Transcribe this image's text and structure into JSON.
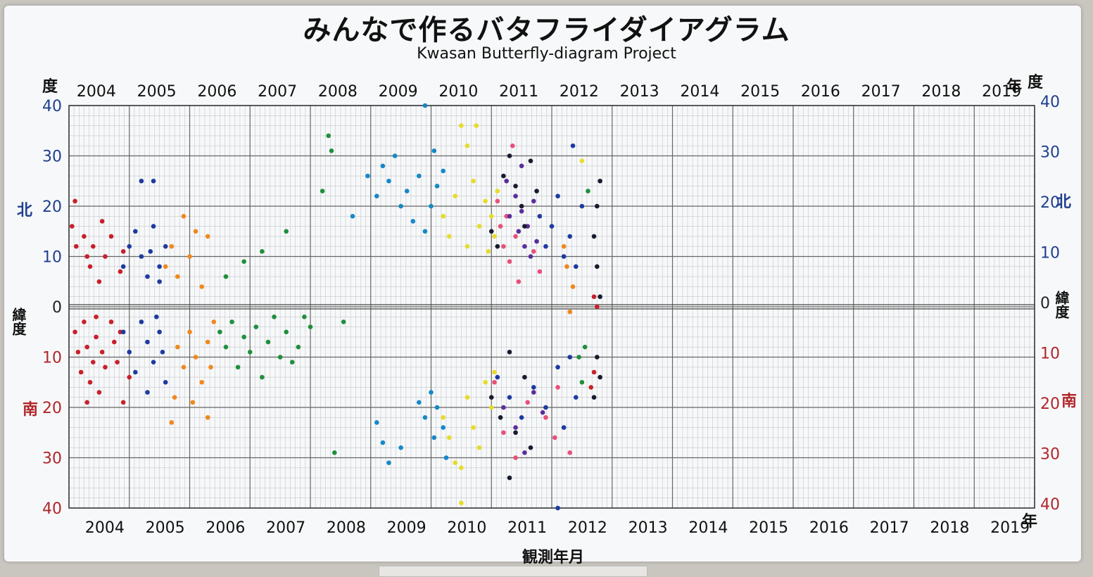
{
  "title": "みんなで作るバタフライダイアグラム",
  "subtitle": "Kwasan Butterfly-diagram Project",
  "labels": {
    "degree_left": "度",
    "degree_right": "度",
    "year_suffix_top": "年",
    "year_suffix_bottom": "年",
    "north_left": "北",
    "north_right": "北",
    "south_left": "南",
    "south_right": "南",
    "latitude_left": "緯度",
    "latitude_right": "緯度",
    "xlabel": "観測年月"
  },
  "colors": {
    "north_axis": "#1f3f8f",
    "south_axis": "#b0262a",
    "grid_major": "#666666",
    "grid_minor": "#c4c7cc"
  },
  "chart_data": {
    "type": "scatter",
    "title": "みんなで作るバタフライダイアグラム",
    "subtitle": "Kwasan Butterfly-diagram Project",
    "xlabel": "観測年月",
    "ylabel": "緯度",
    "xlim": [
      2004.0,
      2020.0
    ],
    "ylim": [
      -40,
      40
    ],
    "x_ticks": [
      2004,
      2005,
      2006,
      2007,
      2008,
      2009,
      2010,
      2011,
      2012,
      2013,
      2014,
      2015,
      2016,
      2017,
      2018,
      2019
    ],
    "y_ticks_left": [
      "40",
      "30",
      "20",
      "10",
      "0",
      "10",
      "20",
      "30",
      "40"
    ],
    "y_ticks_right": [
      "40",
      "30",
      "20",
      "10",
      "0",
      "10",
      "20",
      "30",
      "40"
    ],
    "grid": true,
    "series": [
      {
        "color": "#c8202a",
        "points": [
          [
            2004.05,
            16
          ],
          [
            2004.1,
            21
          ],
          [
            2004.12,
            12
          ],
          [
            2004.25,
            14
          ],
          [
            2004.3,
            10
          ],
          [
            2004.35,
            8
          ],
          [
            2004.4,
            12
          ],
          [
            2004.5,
            5
          ],
          [
            2004.55,
            17
          ],
          [
            2004.6,
            10
          ],
          [
            2004.7,
            14
          ],
          [
            2004.85,
            7
          ],
          [
            2004.9,
            11
          ],
          [
            2004.1,
            -5
          ],
          [
            2004.15,
            -9
          ],
          [
            2004.2,
            -13
          ],
          [
            2004.25,
            -3
          ],
          [
            2004.3,
            -8
          ],
          [
            2004.35,
            -15
          ],
          [
            2004.4,
            -11
          ],
          [
            2004.45,
            -6
          ],
          [
            2004.5,
            -17
          ],
          [
            2004.55,
            -9
          ],
          [
            2004.6,
            -12
          ],
          [
            2004.7,
            -3
          ],
          [
            2004.75,
            -7
          ],
          [
            2004.8,
            -11
          ],
          [
            2004.9,
            -19
          ],
          [
            2004.85,
            -5
          ],
          [
            2005.0,
            -14
          ],
          [
            2004.3,
            -19
          ],
          [
            2004.45,
            -2
          ],
          [
            2012.65,
            -16
          ],
          [
            2012.7,
            -13
          ],
          [
            2012.75,
            0
          ],
          [
            2012.7,
            2
          ]
        ]
      },
      {
        "color": "#1e3aa0",
        "points": [
          [
            2004.9,
            8
          ],
          [
            2005.0,
            12
          ],
          [
            2005.1,
            15
          ],
          [
            2005.2,
            10
          ],
          [
            2005.3,
            6
          ],
          [
            2005.35,
            11
          ],
          [
            2005.4,
            16
          ],
          [
            2005.5,
            8
          ],
          [
            2005.6,
            12
          ],
          [
            2005.2,
            25
          ],
          [
            2005.4,
            25
          ],
          [
            2005.5,
            5
          ],
          [
            2004.9,
            -5
          ],
          [
            2005.0,
            -9
          ],
          [
            2005.1,
            -13
          ],
          [
            2005.2,
            -3
          ],
          [
            2005.3,
            -7
          ],
          [
            2005.4,
            -11
          ],
          [
            2005.5,
            -5
          ],
          [
            2005.55,
            -9
          ],
          [
            2005.6,
            -15
          ],
          [
            2005.3,
            -17
          ],
          [
            2005.45,
            -2
          ],
          [
            2011.1,
            -14
          ],
          [
            2011.3,
            -18
          ],
          [
            2011.5,
            -22
          ],
          [
            2011.7,
            -16
          ],
          [
            2011.9,
            -20
          ],
          [
            2012.1,
            -12
          ],
          [
            2012.2,
            -24
          ],
          [
            2012.3,
            -10
          ],
          [
            2012.4,
            -18
          ],
          [
            2011.8,
            18
          ],
          [
            2011.9,
            12
          ],
          [
            2012.0,
            16
          ],
          [
            2012.1,
            22
          ],
          [
            2012.2,
            10
          ],
          [
            2012.3,
            14
          ],
          [
            2012.35,
            32
          ],
          [
            2012.4,
            8
          ],
          [
            2012.5,
            20
          ],
          [
            2012.1,
            -40
          ]
        ]
      },
      {
        "color": "#f0881e",
        "points": [
          [
            2005.6,
            8
          ],
          [
            2005.7,
            12
          ],
          [
            2005.8,
            6
          ],
          [
            2005.9,
            18
          ],
          [
            2006.0,
            10
          ],
          [
            2006.1,
            15
          ],
          [
            2006.2,
            4
          ],
          [
            2006.3,
            14
          ],
          [
            2005.8,
            -8
          ],
          [
            2005.9,
            -12
          ],
          [
            2006.0,
            -5
          ],
          [
            2006.1,
            -10
          ],
          [
            2006.2,
            -15
          ],
          [
            2006.3,
            -7
          ],
          [
            2006.35,
            -12
          ],
          [
            2006.4,
            -3
          ],
          [
            2005.7,
            -23
          ],
          [
            2006.3,
            -22
          ],
          [
            2005.75,
            -18
          ],
          [
            2006.05,
            -19
          ],
          [
            2012.25,
            8
          ],
          [
            2012.35,
            4
          ],
          [
            2012.3,
            -1
          ],
          [
            2012.2,
            12
          ]
        ]
      },
      {
        "color": "#1f8f3c",
        "points": [
          [
            2006.5,
            -5
          ],
          [
            2006.6,
            -8
          ],
          [
            2006.7,
            -3
          ],
          [
            2006.8,
            -12
          ],
          [
            2006.9,
            -6
          ],
          [
            2007.0,
            -9
          ],
          [
            2007.1,
            -4
          ],
          [
            2007.2,
            -14
          ],
          [
            2007.3,
            -7
          ],
          [
            2007.4,
            -2
          ],
          [
            2007.5,
            -10
          ],
          [
            2007.6,
            -5
          ],
          [
            2007.7,
            -11
          ],
          [
            2007.8,
            -8
          ],
          [
            2008.0,
            -4
          ],
          [
            2007.9,
            -2
          ],
          [
            2006.9,
            9
          ],
          [
            2007.2,
            11
          ],
          [
            2007.6,
            15
          ],
          [
            2006.6,
            6
          ],
          [
            2008.3,
            34
          ],
          [
            2008.35,
            31
          ],
          [
            2008.2,
            23
          ],
          [
            2008.4,
            -29
          ],
          [
            2008.55,
            -3
          ],
          [
            2012.45,
            -10
          ],
          [
            2012.5,
            -15
          ],
          [
            2012.55,
            -8
          ],
          [
            2012.6,
            23
          ]
        ]
      },
      {
        "color": "#1688c8",
        "points": [
          [
            2008.7,
            18
          ],
          [
            2008.95,
            26
          ],
          [
            2009.1,
            22
          ],
          [
            2009.2,
            28
          ],
          [
            2009.3,
            25
          ],
          [
            2009.4,
            30
          ],
          [
            2009.5,
            20
          ],
          [
            2009.6,
            23
          ],
          [
            2009.7,
            17
          ],
          [
            2009.8,
            26
          ],
          [
            2009.9,
            15
          ],
          [
            2010.0,
            20
          ],
          [
            2010.05,
            31
          ],
          [
            2010.1,
            24
          ],
          [
            2010.2,
            27
          ],
          [
            2009.1,
            -23
          ],
          [
            2009.2,
            -27
          ],
          [
            2009.3,
            -31
          ],
          [
            2009.5,
            -28
          ],
          [
            2009.8,
            -19
          ],
          [
            2009.9,
            -22
          ],
          [
            2010.0,
            -17
          ],
          [
            2010.05,
            -26
          ],
          [
            2010.1,
            -20
          ],
          [
            2010.2,
            -24
          ],
          [
            2010.25,
            -30
          ],
          [
            2009.9,
            40
          ]
        ]
      },
      {
        "color": "#e6dc2a",
        "points": [
          [
            2010.2,
            18
          ],
          [
            2010.3,
            14
          ],
          [
            2010.4,
            22
          ],
          [
            2010.5,
            36
          ],
          [
            2010.6,
            12
          ],
          [
            2010.7,
            25
          ],
          [
            2010.8,
            16
          ],
          [
            2010.9,
            21
          ],
          [
            2011.0,
            18
          ],
          [
            2010.75,
            36
          ],
          [
            2010.6,
            32
          ],
          [
            2010.95,
            11
          ],
          [
            2011.05,
            14
          ],
          [
            2011.1,
            23
          ],
          [
            2012.5,
            29
          ],
          [
            2010.2,
            -22
          ],
          [
            2010.3,
            -26
          ],
          [
            2010.4,
            -31
          ],
          [
            2010.5,
            -32
          ],
          [
            2010.6,
            -18
          ],
          [
            2010.7,
            -24
          ],
          [
            2010.8,
            -28
          ],
          [
            2010.9,
            -15
          ],
          [
            2011.0,
            -20
          ],
          [
            2011.05,
            -13
          ],
          [
            2010.5,
            -39
          ]
        ]
      },
      {
        "color": "#e8507a",
        "points": [
          [
            2011.1,
            21
          ],
          [
            2011.15,
            16
          ],
          [
            2011.2,
            12
          ],
          [
            2011.25,
            18
          ],
          [
            2011.3,
            9
          ],
          [
            2011.35,
            32
          ],
          [
            2011.4,
            14
          ],
          [
            2011.45,
            5
          ],
          [
            2011.7,
            11
          ],
          [
            2011.8,
            7
          ],
          [
            2011.05,
            -15
          ],
          [
            2011.2,
            -25
          ],
          [
            2011.4,
            -30
          ],
          [
            2011.6,
            -19
          ],
          [
            2011.9,
            -22
          ],
          [
            2012.05,
            -26
          ],
          [
            2012.1,
            -16
          ],
          [
            2012.3,
            -29
          ]
        ]
      },
      {
        "color": "#5a2e9a",
        "points": [
          [
            2011.25,
            25
          ],
          [
            2011.3,
            18
          ],
          [
            2011.4,
            22
          ],
          [
            2011.45,
            15
          ],
          [
            2011.5,
            19
          ],
          [
            2011.55,
            12
          ],
          [
            2011.6,
            16
          ],
          [
            2011.65,
            10
          ],
          [
            2011.7,
            21
          ],
          [
            2011.5,
            28
          ],
          [
            2011.75,
            13
          ],
          [
            2011.2,
            -20
          ],
          [
            2011.4,
            -24
          ],
          [
            2011.55,
            -29
          ],
          [
            2011.7,
            -17
          ],
          [
            2011.85,
            -21
          ]
        ]
      },
      {
        "color": "#161c2e",
        "points": [
          [
            2011.0,
            15
          ],
          [
            2011.1,
            12
          ],
          [
            2011.2,
            26
          ],
          [
            2011.3,
            30
          ],
          [
            2011.4,
            24
          ],
          [
            2011.5,
            20
          ],
          [
            2011.55,
            16
          ],
          [
            2011.65,
            29
          ],
          [
            2011.75,
            23
          ],
          [
            2011.0,
            -18
          ],
          [
            2011.15,
            -22
          ],
          [
            2011.3,
            -9
          ],
          [
            2011.4,
            -25
          ],
          [
            2011.55,
            -14
          ],
          [
            2011.65,
            -28
          ],
          [
            2011.3,
            -34
          ],
          [
            2012.8,
            25
          ],
          [
            2012.75,
            20
          ],
          [
            2012.7,
            14
          ],
          [
            2012.75,
            8
          ],
          [
            2012.8,
            2
          ],
          [
            2012.7,
            -18
          ],
          [
            2012.75,
            -10
          ],
          [
            2012.8,
            -14
          ]
        ]
      }
    ]
  }
}
